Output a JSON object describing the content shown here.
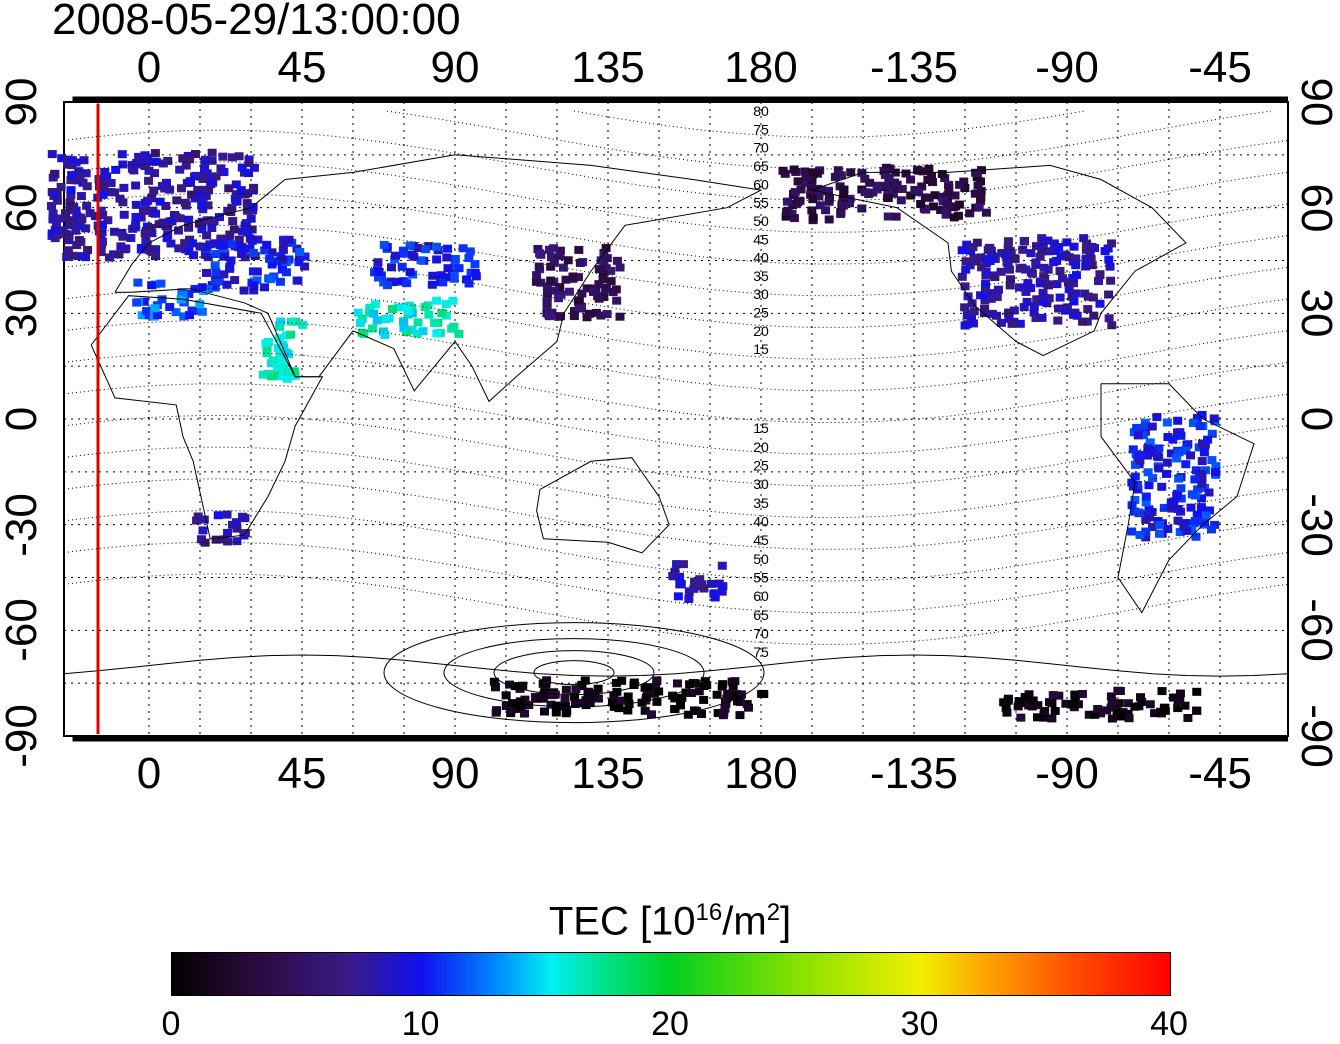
{
  "timestamp": "2008-05-29/13:00:00",
  "map": {
    "projection": "equirectangular",
    "central_longitude": 0,
    "lon_range": [
      -25,
      335
    ],
    "lat_range": [
      -90,
      90
    ],
    "x_tick_labels": [
      "0",
      "45",
      "90",
      "135",
      "180",
      "-135",
      "-90",
      "-45"
    ],
    "y_tick_labels": [
      "90",
      "60",
      "30",
      "0",
      "-30",
      "-60",
      "-90"
    ],
    "vertical_marker": {
      "longitude": -15,
      "color": "#e00000"
    },
    "contour_labels_north": [
      "80",
      "75",
      "70",
      "65",
      "60",
      "55",
      "50",
      "45",
      "40",
      "35",
      "30",
      "25",
      "20",
      "15"
    ],
    "contour_labels_south": [
      "15",
      "20",
      "25",
      "30",
      "35",
      "40",
      "45",
      "50",
      "55",
      "60",
      "65",
      "70",
      "75"
    ],
    "graticule": "dotted",
    "coastlines": true
  },
  "colorbar": {
    "title_text": "TEC  [10",
    "title_sup": "16",
    "title_unit": "/m",
    "title_unit_sup": "2",
    "title_close": "]",
    "min": 0,
    "max": 40,
    "tick_labels": [
      "0",
      "10",
      "20",
      "30",
      "40"
    ],
    "colors": {
      "low": "#000000",
      "mid_low": "#1010f0",
      "cyan": "#00f0f0",
      "green": "#00d020",
      "yellow": "#f0f000",
      "high": "#ff0000"
    }
  },
  "patches": [
    {
      "lon": 0,
      "lat": 62,
      "w": 60,
      "h": 30,
      "tec": 8
    },
    {
      "lon": 30,
      "lat": 45,
      "w": 30,
      "h": 15,
      "tec": 10
    },
    {
      "lon": 5,
      "lat": 35,
      "w": 20,
      "h": 10,
      "tec": 12
    },
    {
      "lon": 38,
      "lat": 20,
      "w": 12,
      "h": 18,
      "tec": 16
    },
    {
      "lon": 75,
      "lat": 30,
      "w": 30,
      "h": 10,
      "tec": 16
    },
    {
      "lon": 80,
      "lat": 45,
      "w": 30,
      "h": 12,
      "tec": 10
    },
    {
      "lon": 125,
      "lat": 40,
      "w": 25,
      "h": 20,
      "tec": 5
    },
    {
      "lon": 20,
      "lat": -30,
      "w": 15,
      "h": 8,
      "tec": 8
    },
    {
      "lon": 215,
      "lat": 65,
      "w": 60,
      "h": 15,
      "tec": 4
    },
    {
      "lon": 260,
      "lat": 40,
      "w": 45,
      "h": 25,
      "tec": 8
    },
    {
      "lon": 300,
      "lat": -15,
      "w": 25,
      "h": 35,
      "tec": 10
    },
    {
      "lon": 160,
      "lat": -45,
      "w": 15,
      "h": 10,
      "tec": 8
    },
    {
      "lon": 140,
      "lat": -78,
      "w": 80,
      "h": 10,
      "tec": 1
    },
    {
      "lon": 280,
      "lat": -80,
      "w": 60,
      "h": 8,
      "tec": 1
    }
  ]
}
